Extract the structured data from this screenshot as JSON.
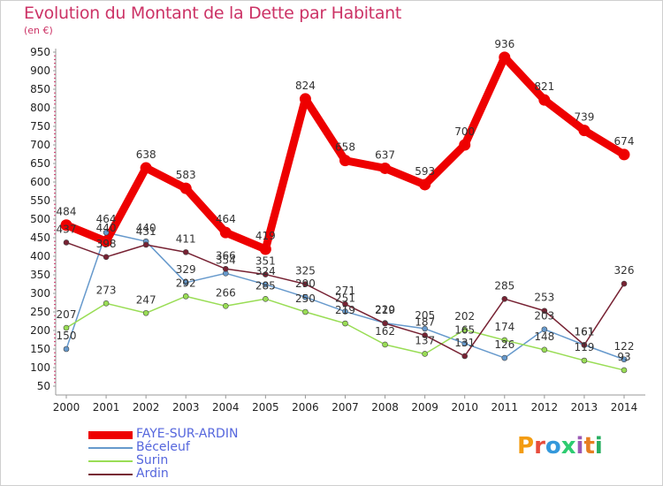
{
  "title": "Evolution du Montant de la Dette par Habitant",
  "unit": "(en €)",
  "logo": {
    "text": "Proxiti",
    "colors": [
      "#f39c12",
      "#e74c3c",
      "#3498db",
      "#2ecc71",
      "#9b59b6",
      "#e67e22",
      "#27ae60"
    ]
  },
  "chart_data": {
    "type": "line",
    "title": "Evolution du Montant de la Dette par Habitant",
    "ylabel": "(en €)",
    "xlabel": "",
    "x": [
      "2000",
      "2001",
      "2002",
      "2003",
      "2004",
      "2005",
      "2006",
      "2007",
      "2008",
      "2009",
      "2010",
      "2011",
      "2012",
      "2013",
      "2014"
    ],
    "ylim": [
      50,
      950
    ],
    "yticks": [
      50,
      100,
      150,
      200,
      250,
      300,
      350,
      400,
      450,
      500,
      550,
      600,
      650,
      700,
      750,
      800,
      850,
      900,
      950
    ],
    "grid": false,
    "legend_position": "bottom-left",
    "series": [
      {
        "name": "FAYE-SUR-ARDIN",
        "color": "#ee0000",
        "width": 9,
        "values": [
          484,
          440,
          638,
          583,
          464,
          419,
          824,
          658,
          637,
          593,
          700,
          936,
          821,
          739,
          674
        ]
      },
      {
        "name": "Béceleuf",
        "color": "#6699cc",
        "width": 1.5,
        "values": [
          150,
          464,
          440,
          329,
          354,
          324,
          290,
          251,
          220,
          205,
          165,
          126,
          203,
          161,
          122
        ]
      },
      {
        "name": "Surin",
        "color": "#99dd55",
        "width": 1.5,
        "values": [
          207,
          273,
          247,
          292,
          266,
          285,
          250,
          219,
          162,
          137,
          202,
          174,
          148,
          119,
          93
        ]
      },
      {
        "name": "Ardin",
        "color": "#772233",
        "width": 1.5,
        "values": [
          437,
          398,
          431,
          411,
          366,
          351,
          325,
          271,
          219,
          187,
          131,
          285,
          253,
          161,
          326
        ]
      }
    ],
    "data_labels": {
      "FAYE-SUR-ARDIN": [
        "484",
        "440",
        "638",
        "583",
        "464",
        "419",
        "824",
        "658",
        "637",
        "593",
        "700",
        "936",
        "821",
        "739",
        "674"
      ],
      "Béceleuf": [
        "150",
        "464",
        "440",
        "329",
        "354",
        "324",
        "290",
        "251",
        "220",
        "205",
        "165",
        "126",
        "203",
        "161",
        "122"
      ],
      "Surin": [
        "207",
        "273",
        "247",
        "292",
        "266",
        "285",
        "250",
        "219",
        "162",
        "137",
        "202",
        "174",
        "148",
        "119",
        "93"
      ],
      "Ardin": [
        "437",
        "398",
        "431",
        "411",
        "366",
        "351",
        "325",
        "271",
        "219",
        "187",
        "131",
        "285",
        "253",
        "161",
        "326"
      ]
    }
  }
}
